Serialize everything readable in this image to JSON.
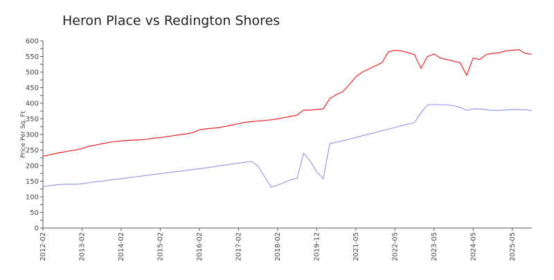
{
  "chart_data": {
    "type": "line",
    "title": "Heron Place vs Redington Shores",
    "y_label": "Price Per Sq. Ft",
    "categories": [
      "2012-02",
      null,
      null,
      null,
      null,
      null,
      "2013-02",
      null,
      null,
      null,
      null,
      null,
      "2014-02",
      null,
      null,
      null,
      null,
      null,
      "2015-02",
      null,
      null,
      null,
      null,
      null,
      "2016-02",
      null,
      null,
      null,
      null,
      null,
      "2017-02",
      null,
      null,
      null,
      null,
      null,
      "2018-02",
      null,
      null,
      null,
      null,
      null,
      "2019-12",
      null,
      null,
      null,
      null,
      null,
      "2021-05",
      null,
      null,
      null,
      null,
      null,
      "2022-05",
      null,
      null,
      null,
      null,
      null,
      "2023-05",
      null,
      null,
      null,
      null,
      null,
      "2024-05",
      null,
      null,
      null,
      null,
      null,
      "2025-05",
      null,
      null,
      null
    ],
    "series": [
      {
        "name": "Redington Shores",
        "color": "#ee2222",
        "values": [
          230,
          235,
          239,
          243,
          247,
          250,
          255,
          262,
          266,
          270,
          274,
          277,
          279,
          281,
          282,
          283,
          285,
          288,
          290,
          293,
          296,
          299,
          302,
          306,
          315,
          318,
          320,
          322,
          326,
          330,
          335,
          339,
          341,
          343,
          345,
          347,
          350,
          354,
          358,
          362,
          378,
          378,
          380,
          382,
          415,
          428,
          437,
          460,
          485,
          500,
          510,
          520,
          530,
          565,
          570,
          568,
          562,
          556,
          512,
          550,
          558,
          545,
          540,
          535,
          530,
          490,
          545,
          540,
          556,
          560,
          562,
          568,
          570,
          572,
          560,
          557
        ]
      },
      {
        "name": "Heron Place",
        "color": "#9999ee",
        "values": [
          133,
          136,
          138,
          140,
          141,
          140,
          142,
          145,
          148,
          150,
          153,
          156,
          158,
          161,
          164,
          166,
          169,
          172,
          174,
          177,
          180,
          182,
          185,
          188,
          190,
          193,
          196,
          199,
          202,
          205,
          208,
          211,
          214,
          198,
          165,
          131,
          138,
          146,
          154,
          160,
          240,
          215,
          180,
          158,
          271,
          275,
          280,
          285,
          290,
          296,
          301,
          306,
          312,
          317,
          322,
          328,
          333,
          338,
          370,
          395,
          396,
          395,
          395,
          392,
          387,
          377,
          382,
          382,
          379,
          377,
          377,
          378,
          380,
          379,
          379,
          376
        ]
      }
    ],
    "ylim": [
      0,
      600
    ],
    "yticks": [
      0,
      25,
      50,
      75,
      100,
      125,
      150,
      175,
      200,
      225,
      250,
      275,
      300,
      325,
      350,
      375,
      400,
      425,
      450,
      475,
      500,
      525,
      550,
      575,
      600
    ]
  }
}
